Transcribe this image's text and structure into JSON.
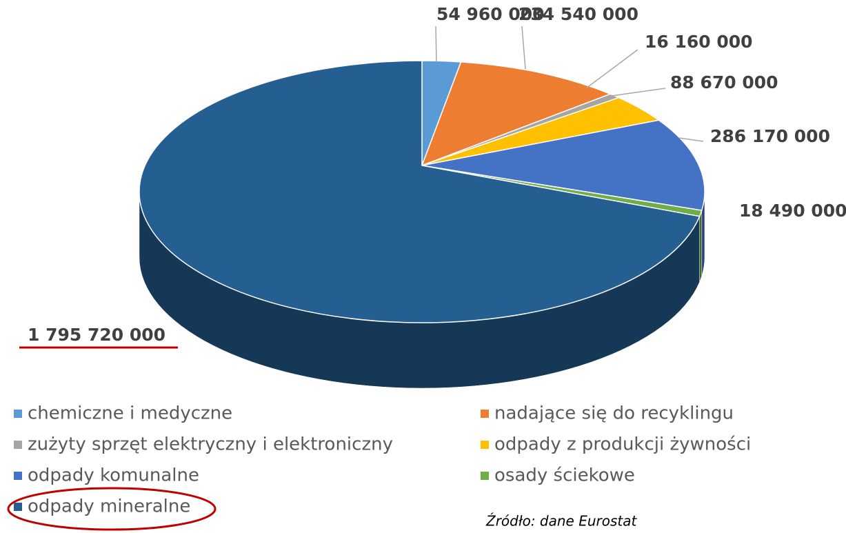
{
  "chart_data": {
    "type": "pie",
    "categories": [
      "chemiczne i medyczne",
      "nadające się do recyklingu",
      "zużyty sprzęt elektryczny i elektroniczny",
      "odpady z produkcji żywności",
      "odpady komunalne",
      "osady ściekowe",
      "odpady mineralne"
    ],
    "values": [
      54960000,
      234540000,
      16160000,
      88670000,
      286170000,
      18490000,
      1795720000
    ],
    "value_labels": [
      "54 960 000",
      "234 540 000",
      "16 160 000",
      "88 670 000",
      "286 170 000",
      "18 490 000",
      "1 795 720 000"
    ],
    "colors": [
      "#5b9bd5",
      "#ed7d31",
      "#a5a5a5",
      "#ffc000",
      "#4472c4",
      "#70ad47",
      "#255e91"
    ],
    "legend": "bottom",
    "annotation": "Źródło: dane Eurostat"
  }
}
